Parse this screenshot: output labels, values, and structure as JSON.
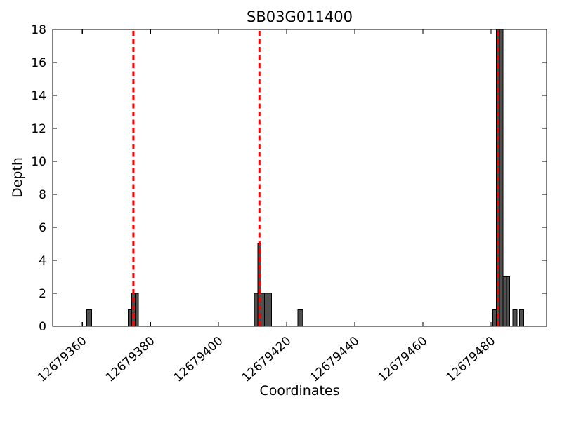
{
  "chart_data": {
    "type": "bar",
    "title": "SB03G011400",
    "xlabel": "Coordinates",
    "ylabel": "Depth",
    "xlim": [
      12679351.3,
      12679496.3
    ],
    "ylim": [
      0,
      18
    ],
    "xticks": [
      12679360,
      12679380,
      12679400,
      12679420,
      12679440,
      12679460,
      12679480
    ],
    "yticks": [
      0,
      2,
      4,
      6,
      8,
      10,
      12,
      14,
      16,
      18
    ],
    "x_tick_rotation_deg": -42,
    "grid": false,
    "legend": null,
    "bars": [
      {
        "x": 12679362,
        "depth": 1,
        "w": 1.4
      },
      {
        "x": 12679374,
        "depth": 1,
        "w": 1
      },
      {
        "x": 12679375,
        "depth": 2,
        "w": 1
      },
      {
        "x": 12679376,
        "depth": 2,
        "w": 1
      },
      {
        "x": 12679411,
        "depth": 2,
        "w": 1
      },
      {
        "x": 12679412,
        "depth": 5,
        "w": 1
      },
      {
        "x": 12679413,
        "depth": 2,
        "w": 1
      },
      {
        "x": 12679414,
        "depth": 2,
        "w": 1
      },
      {
        "x": 12679415,
        "depth": 2,
        "w": 1
      },
      {
        "x": 12679424,
        "depth": 1,
        "w": 1.4
      },
      {
        "x": 12679481,
        "depth": 1,
        "w": 1
      },
      {
        "x": 12679482,
        "depth": 18,
        "w": 1
      },
      {
        "x": 12679483,
        "depth": 18,
        "w": 1
      },
      {
        "x": 12679484,
        "depth": 3,
        "w": 1
      },
      {
        "x": 12679485,
        "depth": 3,
        "w": 1
      },
      {
        "x": 12679487,
        "depth": 1,
        "w": 1.2
      },
      {
        "x": 12679489,
        "depth": 1,
        "w": 1.2
      }
    ],
    "vlines": [
      {
        "x": 12679375,
        "style": "dashed"
      },
      {
        "x": 12679412,
        "style": "dashed"
      },
      {
        "x": 12679482,
        "style": "dashed"
      }
    ],
    "colors": {
      "bar_fill": "#4f4f4f",
      "bar_edge": "#000000",
      "vline": "#ff0000",
      "axis": "#000000",
      "background": "#ffffff"
    }
  }
}
